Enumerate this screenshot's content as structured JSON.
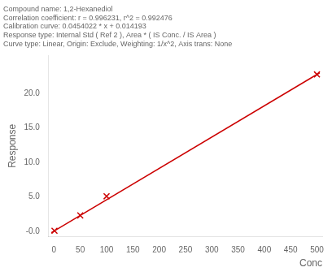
{
  "chart_data": {
    "type": "scatter",
    "title": "Compound name: 1,2-Hexanediol\nCorrelation coefficient: r = 0.996231, r^2 = 0.992476\nCalibration curve: 0.0454022 * x + 0.014193\nResponse type: Internal Std ( Ref 2 ), Area * ( IS Conc. / IS Area )\nCurve type: Linear, Origin: Exclude, Weighting: 1/x^2, Axis trans: None",
    "xlabel": "Conc",
    "ylabel": "Response",
    "series": [
      {
        "type": "line",
        "color": "#cc0000",
        "x": [
          -5,
          505
        ],
        "values": [
          -0.212818,
          22.942304
        ]
      },
      {
        "type": "scatter",
        "color": "#cc0000",
        "marker": "x",
        "x": [
          1,
          50,
          100,
          500
        ],
        "values": [
          0.059595,
          2.284303,
          5.054413,
          22.715293
        ]
      }
    ],
    "xlim": [
      -10,
      510
    ],
    "ylim": [
      -0.8,
      25.5
    ],
    "xticks": [
      0,
      50,
      100,
      150,
      200,
      250,
      300,
      350,
      400,
      450,
      500
    ],
    "yticks": [
      {
        "value": 0,
        "label": "-0.0"
      },
      {
        "value": 5,
        "label": "5.0"
      },
      {
        "value": 10,
        "label": "10.0"
      },
      {
        "value": 15,
        "label": "15.0"
      },
      {
        "value": 20,
        "label": "20.0"
      }
    ],
    "grid": false
  }
}
